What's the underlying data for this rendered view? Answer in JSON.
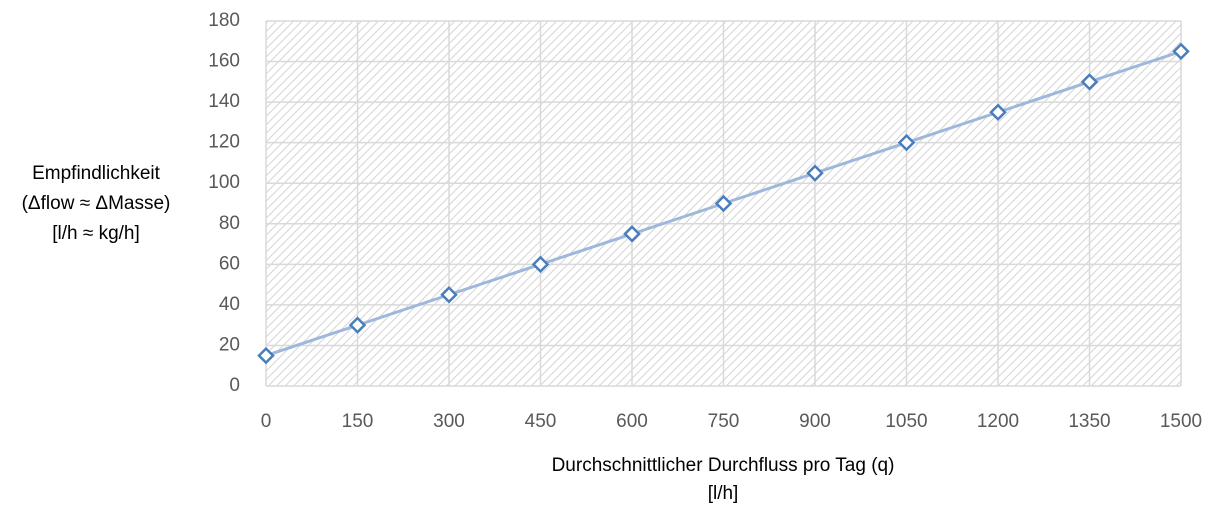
{
  "chart_data": {
    "type": "line",
    "x_label": [
      "Durchschnittlicher Durchfluss pro Tag (q)",
      "[l/h]"
    ],
    "y_label": [
      "Empfindlichkeit",
      "(Δflow ≈ ΔMasse)",
      "[l/h ≈ kg/h]"
    ],
    "x": [
      0,
      150,
      300,
      450,
      600,
      750,
      900,
      1050,
      1200,
      1350,
      1500
    ],
    "series": [
      {
        "name": "Empfindlichkeit",
        "color": "#4a7ebb",
        "line_color": "#9fb8da",
        "values": [
          15,
          30,
          45,
          60,
          75,
          90,
          105,
          120,
          135,
          150,
          165
        ]
      }
    ],
    "xlim": [
      0,
      1500
    ],
    "xticks": [
      0,
      150,
      300,
      450,
      600,
      750,
      900,
      1050,
      1200,
      1350,
      1500
    ],
    "ylim": [
      0,
      180
    ],
    "yticks": [
      0,
      20,
      40,
      60,
      80,
      100,
      120,
      140,
      160,
      180
    ],
    "grid": true
  }
}
